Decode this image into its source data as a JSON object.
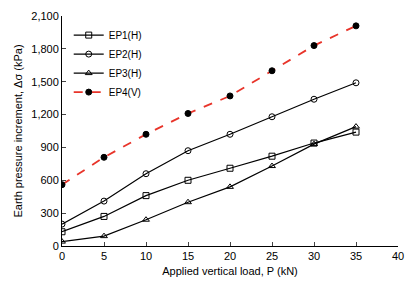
{
  "chart_data": {
    "type": "line",
    "x_label": "Applied vertical load, P (kN)",
    "y_label": "Earth pressure increment, Δσ (kPa)",
    "x": [
      0,
      5,
      10,
      15,
      20,
      25,
      30,
      35
    ],
    "series": [
      {
        "name": "EP1(H)",
        "color": "#000000",
        "marker": "square-open",
        "line_style": "solid",
        "values": [
          130,
          270,
          460,
          600,
          710,
          820,
          940,
          1040
        ]
      },
      {
        "name": "EP2(H)",
        "color": "#000000",
        "marker": "circle-open",
        "line_style": "solid",
        "values": [
          200,
          410,
          660,
          870,
          1020,
          1180,
          1340,
          1490
        ]
      },
      {
        "name": "EP3(H)",
        "color": "#000000",
        "marker": "triangle-up-open",
        "line_style": "solid",
        "values": [
          40,
          90,
          240,
          400,
          540,
          730,
          930,
          1090
        ]
      },
      {
        "name": "EP4(V)",
        "color": "#e8342a",
        "marker": "circle",
        "line_style": "dash",
        "values": [
          560,
          810,
          1020,
          1210,
          1370,
          1600,
          1830,
          2010
        ]
      }
    ],
    "xlim": [
      0,
      40
    ],
    "xticks": [
      0,
      5,
      10,
      15,
      20,
      25,
      30,
      35,
      40
    ],
    "ylim": [
      0,
      2100
    ],
    "yticks": [
      0,
      300,
      600,
      900,
      {
        "value": 1200,
        "label": "1,200"
      },
      {
        "value": 1500,
        "label": "1,500"
      },
      {
        "value": 1800,
        "label": "1,800"
      },
      {
        "value": 2100,
        "label": "2,100"
      }
    ],
    "grid": false,
    "legend": "top-left"
  }
}
